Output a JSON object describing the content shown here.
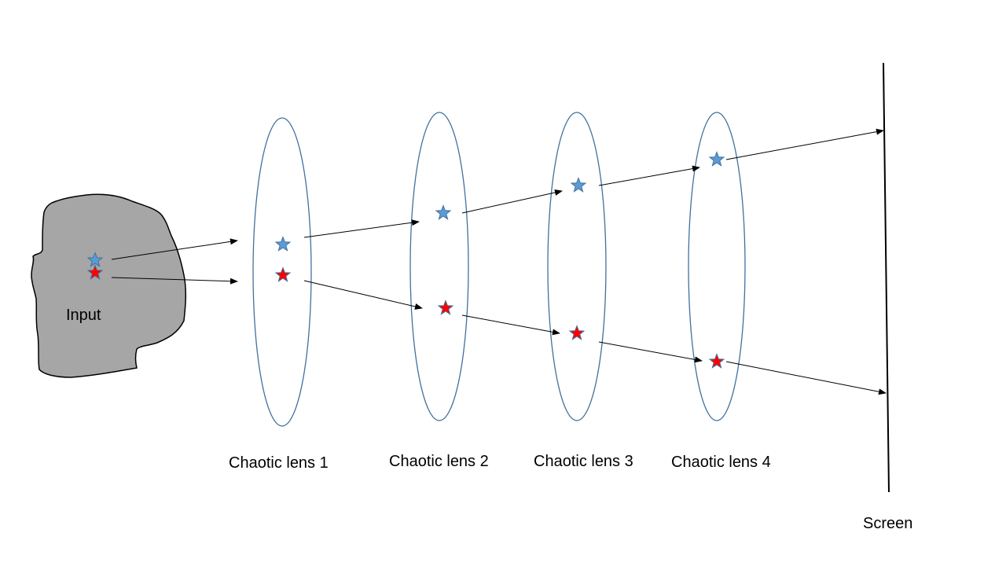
{
  "input": {
    "label": "Input",
    "fill_color": "#A6A6A6",
    "outline_color": "#000000"
  },
  "lenses": [
    {
      "label": "Chaotic lens 1"
    },
    {
      "label": "Chaotic lens 2"
    },
    {
      "label": "Chaotic lens 3"
    },
    {
      "label": "Chaotic lens 4"
    }
  ],
  "screen": {
    "label": "Screen",
    "color": "#000000"
  },
  "colors": {
    "lens_outline": "#41719C",
    "blue_star": "#5B9BD5",
    "red_star": "#FF0000",
    "star_outline": "#41719C",
    "arrow": "#000000"
  },
  "icons": {
    "blue_point": "star-icon",
    "red_point": "star-icon"
  }
}
